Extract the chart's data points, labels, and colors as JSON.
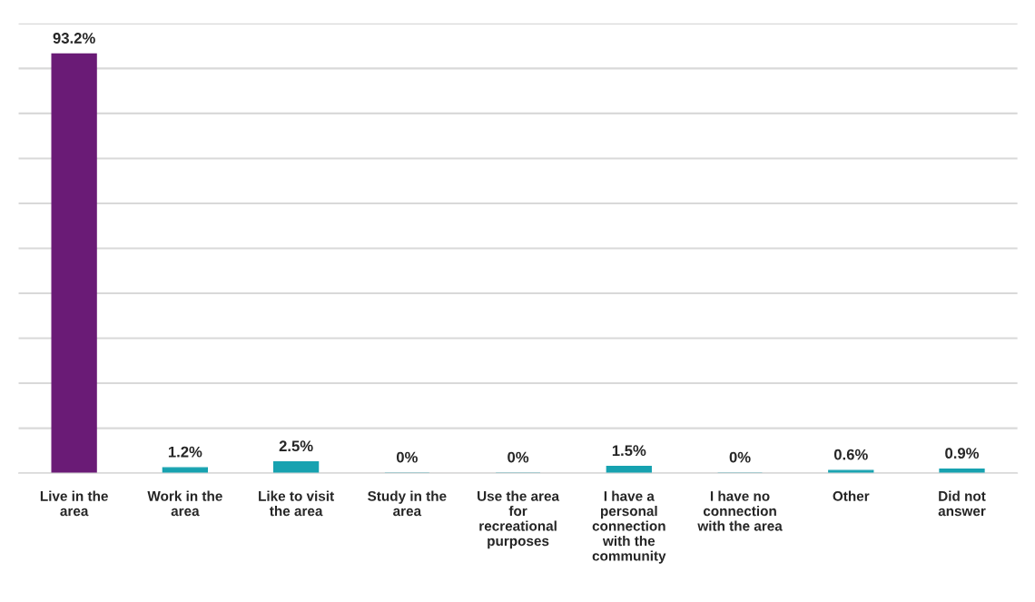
{
  "chart_data": {
    "type": "bar",
    "categories": [
      "Live in the area",
      "Work in the area",
      "Like to visit the area",
      "Study in the area",
      "Use the area for recreational purposes",
      "I have a personal connection with the community",
      "I have no connection with the area",
      "Other",
      "Did not answer"
    ],
    "values": [
      93.2,
      1.2,
      2.5,
      0,
      0,
      1.5,
      0,
      0.6,
      0.9
    ],
    "value_labels": [
      "93.2%",
      "1.2%",
      "2.5%",
      "0%",
      "0%",
      "1.5%",
      "0%",
      "0.6%",
      "0.9%"
    ],
    "colors": [
      "#6a1b76",
      "#17a2b0",
      "#17a2b0",
      "#17a2b0",
      "#17a2b0",
      "#17a2b0",
      "#17a2b0",
      "#17a2b0",
      "#17a2b0"
    ],
    "ylim": [
      0,
      100
    ],
    "yticks": [
      {
        "value": 0,
        "label": null
      },
      {
        "value": 10,
        "label": null
      },
      {
        "value": 20,
        "label": null
      },
      {
        "value": 30,
        "label": null
      },
      {
        "value": 40,
        "label": null
      },
      {
        "value": 50,
        "label": null
      },
      {
        "value": 60,
        "label": null
      },
      {
        "value": 70,
        "label": null
      },
      {
        "value": 80,
        "label": null
      },
      {
        "value": 90,
        "label": null
      },
      {
        "value": 100,
        "label": null
      }
    ],
    "grid": "y",
    "tick_labels": "x"
  }
}
